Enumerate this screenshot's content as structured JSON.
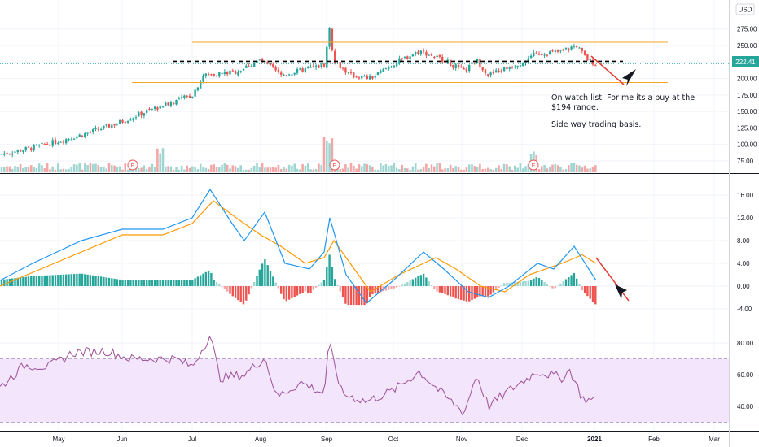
{
  "currency_label": "USD",
  "price_badge": "222.41",
  "colors": {
    "up": "#26a69a",
    "down": "#ef5350",
    "volume_up": "#9fd6d1",
    "volume_down": "#f4a7a6",
    "macd_line": "#2196f3",
    "signal_line": "#ff9800",
    "rsi_line": "#9c4f96",
    "rsi_band": "#f3e5fb",
    "support_resistance": "#f5a623",
    "trend_line": "#e53935",
    "dashed_level": "#000000"
  },
  "annotations": {
    "watch_line1": "On watch list. For me its a buy at the",
    "watch_line2": "$194 range.",
    "side_way": "Side way trading basis.",
    "earnings_marker": "E"
  },
  "chart_data": [
    {
      "type": "candlestick",
      "panel": "price",
      "x_ticks": [
        "May",
        "Jun",
        "Jul",
        "Aug",
        "Sep",
        "Oct",
        "Nov",
        "Dec",
        "2021",
        "Feb",
        "Mar"
      ],
      "y_ticks": [
        75,
        100,
        125,
        150,
        175,
        200,
        225,
        250,
        275
      ],
      "ylim": [
        62,
        293
      ],
      "last_price": 222.41,
      "levels": [
        {
          "name": "resistance",
          "value": 255
        },
        {
          "name": "mid-range dashed",
          "value": 226
        },
        {
          "name": "support",
          "value": 194
        }
      ],
      "earnings_dates": [
        "2020-05-05",
        "2020-09-01",
        "2020-12-03"
      ],
      "volume": "shown as bars at the bottom of the price panel"
    },
    {
      "type": "line",
      "panel": "macd",
      "y_ticks": [
        -4.0,
        0.0,
        4.0,
        8.0,
        12.0,
        16.0
      ],
      "ylim": [
        -6,
        19
      ],
      "series": [
        {
          "name": "",
          "values_peak": 17.0
        },
        {
          "name": "",
          "values_peak": 15.0
        }
      ],
      "histogram": "red and green bars around zero"
    },
    {
      "type": "line",
      "panel": "rsi",
      "y_ticks": [
        40.0,
        60.0,
        80.0
      ],
      "ylim": [
        25,
        95
      ],
      "band": [
        30,
        70
      ]
    }
  ]
}
